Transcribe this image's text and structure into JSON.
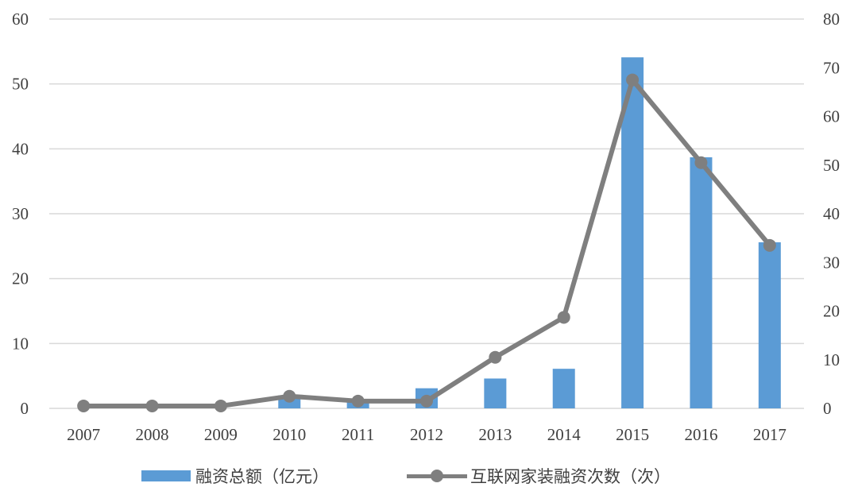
{
  "chart_data": {
    "type": "bar+line",
    "categories": [
      "2007",
      "2008",
      "2009",
      "2010",
      "2011",
      "2012",
      "2013",
      "2014",
      "2015",
      "2016",
      "2017"
    ],
    "series": [
      {
        "name": "融资总额（亿元）",
        "type": "bar",
        "axis": "left",
        "color": "#5B9BD5",
        "values": [
          0,
          0,
          0,
          2.0,
          1.2,
          3.1,
          4.6,
          6.1,
          54.1,
          38.7,
          25.6
        ]
      },
      {
        "name": "互联网家装融资次数（次）",
        "type": "line",
        "axis": "right",
        "color": "#7F7F7F",
        "values": [
          0.5,
          0.5,
          0.5,
          2.5,
          1.5,
          1.5,
          10.5,
          18.7,
          67.5,
          50.5,
          33.5
        ]
      }
    ],
    "y_left": {
      "min": 0,
      "max": 60,
      "ticks": [
        0,
        10,
        20,
        30,
        40,
        50,
        60
      ]
    },
    "y_right": {
      "min": 0,
      "max": 80,
      "ticks": [
        0,
        10,
        20,
        30,
        40,
        50,
        60,
        70,
        80
      ]
    },
    "grid": true,
    "legend_position": "bottom"
  }
}
